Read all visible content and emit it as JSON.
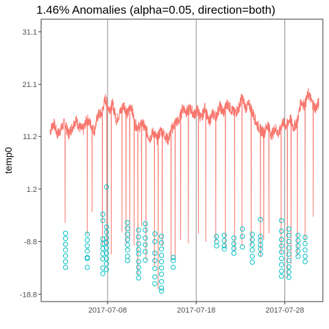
{
  "chart_data": {
    "type": "line",
    "title": "1.46% Anomalies (alpha=0.05, direction=both)",
    "xlabel": "",
    "ylabel": "temp0",
    "y_ticks": [
      "31.1",
      "21.1",
      "11.2",
      "1.2",
      "-8.8",
      "-18.8"
    ],
    "y_tick_values": [
      31.1,
      21.1,
      11.2,
      1.2,
      -8.8,
      -18.8
    ],
    "x_ticks": [
      "2017-07-08",
      "2017-07-18",
      "2017-07-28"
    ],
    "x_tick_values": [
      "2017-07-08",
      "2017-07-18",
      "2017-07-28"
    ],
    "x_range": [
      "2017-06-30T12:00",
      "2017-08-01T07:00"
    ],
    "ylim": [
      -20.2,
      33.5
    ],
    "grid": false,
    "series": [
      {
        "color": "#F8766D",
        "values": [
          [
            "2017-07-01T12:00",
            12.2
          ],
          [
            "2017-07-01T22:00",
            13.8
          ],
          [
            "2017-07-02T08:00",
            11.6
          ],
          [
            "2017-07-02T18:00",
            12.6
          ],
          [
            "2017-07-03T04:00",
            13.9
          ],
          [
            "2017-07-03T14:00",
            11.6
          ],
          [
            "2017-07-04T00:00",
            12.9
          ],
          [
            "2017-07-04T10:00",
            14.4
          ],
          [
            "2017-07-04T20:00",
            12.9
          ],
          [
            "2017-07-05T06:00",
            12.4
          ],
          [
            "2017-07-05T16:00",
            14.5
          ],
          [
            "2017-07-06T02:00",
            13.5
          ],
          [
            "2017-07-06T12:00",
            12.2
          ],
          [
            "2017-07-06T22:00",
            15.3
          ],
          [
            "2017-07-07T08:00",
            15.5
          ],
          [
            "2017-07-07T18:00",
            18.4
          ],
          [
            "2017-07-08T04:00",
            16.4
          ],
          [
            "2017-07-08T14:00",
            17.3
          ],
          [
            "2017-07-09T00:00",
            14.3
          ],
          [
            "2017-07-09T10:00",
            15.8
          ],
          [
            "2017-07-09T20:00",
            17.2
          ],
          [
            "2017-07-10T06:00",
            15.5
          ],
          [
            "2017-07-10T16:00",
            17.1
          ],
          [
            "2017-07-11T02:00",
            13.5
          ],
          [
            "2017-07-11T12:00",
            12.9
          ],
          [
            "2017-07-11T22:00",
            13.7
          ],
          [
            "2017-07-12T08:00",
            12.5
          ],
          [
            "2017-07-12T18:00",
            10.8
          ],
          [
            "2017-07-13T04:00",
            12.1
          ],
          [
            "2017-07-13T14:00",
            10.6
          ],
          [
            "2017-07-14T00:00",
            12.4
          ],
          [
            "2017-07-14T10:00",
            11.5
          ],
          [
            "2017-07-14T20:00",
            10.5
          ],
          [
            "2017-07-15T06:00",
            12.6
          ],
          [
            "2017-07-15T16:00",
            13.9
          ],
          [
            "2017-07-16T02:00",
            14.2
          ],
          [
            "2017-07-16T12:00",
            16.8
          ],
          [
            "2017-07-16T22:00",
            15.8
          ],
          [
            "2017-07-17T08:00",
            16.5
          ],
          [
            "2017-07-17T18:00",
            15.4
          ],
          [
            "2017-07-18T04:00",
            16.2
          ],
          [
            "2017-07-18T14:00",
            14.5
          ],
          [
            "2017-07-19T00:00",
            16.8
          ],
          [
            "2017-07-19T10:00",
            13.8
          ],
          [
            "2017-07-19T20:00",
            15.5
          ],
          [
            "2017-07-20T06:00",
            15.0
          ],
          [
            "2017-07-20T16:00",
            16.9
          ],
          [
            "2017-07-21T02:00",
            15.7
          ],
          [
            "2017-07-21T12:00",
            17.5
          ],
          [
            "2017-07-21T22:00",
            16.4
          ],
          [
            "2017-07-22T08:00",
            15.6
          ],
          [
            "2017-07-22T18:00",
            16.4
          ],
          [
            "2017-07-23T04:00",
            18.6
          ],
          [
            "2017-07-23T14:00",
            16.7
          ],
          [
            "2017-07-24T00:00",
            17.2
          ],
          [
            "2017-07-24T10:00",
            15.5
          ],
          [
            "2017-07-24T20:00",
            13.6
          ],
          [
            "2017-07-25T06:00",
            12.5
          ],
          [
            "2017-07-25T16:00",
            11.9
          ],
          [
            "2017-07-26T02:00",
            13.5
          ],
          [
            "2017-07-26T12:00",
            11.4
          ],
          [
            "2017-07-26T22:00",
            12.8
          ],
          [
            "2017-07-27T08:00",
            11.6
          ],
          [
            "2017-07-27T18:00",
            13.9
          ],
          [
            "2017-07-28T04:00",
            13.2
          ],
          [
            "2017-07-28T14:00",
            14.6
          ],
          [
            "2017-07-29T00:00",
            12.9
          ],
          [
            "2017-07-29T10:00",
            14.1
          ],
          [
            "2017-07-29T20:00",
            17.9
          ],
          [
            "2017-07-30T06:00",
            17.1
          ],
          [
            "2017-07-30T16:00",
            19.4
          ],
          [
            "2017-07-31T02:00",
            17.6
          ],
          [
            "2017-07-31T12:00",
            16.5
          ],
          [
            "2017-07-31T20:00",
            17.6
          ]
        ],
        "dips": [
          [
            "2017-07-03T05:00",
            -5.2
          ],
          [
            "2017-07-05T17:00",
            -7.4
          ],
          [
            "2017-07-06T06:00",
            -3.1
          ],
          [
            "2017-07-07T10:00",
            -9.4
          ],
          [
            "2017-07-07T22:00",
            -9.6
          ],
          [
            "2017-07-08T10:00",
            -11.2
          ],
          [
            "2017-07-09T15:00",
            -7.0
          ],
          [
            "2017-07-10T02:00",
            -9.2
          ],
          [
            "2017-07-10T12:00",
            -8.4
          ],
          [
            "2017-07-11T00:00",
            -9.5
          ],
          [
            "2017-07-11T10:00",
            -15.0
          ],
          [
            "2017-07-11T20:00",
            -5.8
          ],
          [
            "2017-07-12T08:00",
            -12.2
          ],
          [
            "2017-07-13T07:00",
            -13.5
          ],
          [
            "2017-07-13T17:00",
            -17.8
          ],
          [
            "2017-07-14T04:00",
            -9.7
          ],
          [
            "2017-07-15T04:00",
            -12.3
          ],
          [
            "2017-07-15T15:00",
            -12.3
          ],
          [
            "2017-07-16T06:00",
            -8.4
          ],
          [
            "2017-07-17T03:00",
            -9.1
          ],
          [
            "2017-07-18T06:00",
            -7.2
          ],
          [
            "2017-07-19T02:00",
            -8.8
          ],
          [
            "2017-07-20T05:00",
            -8.8
          ],
          [
            "2017-07-21T07:00",
            -10.0
          ],
          [
            "2017-07-22T08:00",
            -10.4
          ],
          [
            "2017-07-23T04:00",
            -9.6
          ],
          [
            "2017-07-24T05:00",
            -9.4
          ],
          [
            "2017-07-25T06:00",
            -11.6
          ],
          [
            "2017-07-25T15:00",
            -8.4
          ],
          [
            "2017-07-26T05:00",
            -7.2
          ],
          [
            "2017-07-27T14:00",
            -11.0
          ],
          [
            "2017-07-28T07:00",
            -15.6
          ],
          [
            "2017-07-28T17:00",
            -13.0
          ],
          [
            "2017-07-29T10:00",
            -11.5
          ],
          [
            "2017-07-30T07:00",
            -8.8
          ],
          [
            "2017-07-31T05:00",
            -4.0
          ]
        ]
      },
      {
        "color": "#00BFC4",
        "marker": "open-circle",
        "clusters": [
          {
            "x": "2017-07-03T06:00",
            "y": [
              -7.2,
              -8.2,
              -9.3,
              -10.4,
              -11.5,
              -12.6,
              -13.7
            ]
          },
          {
            "x": "2017-07-05T17:00",
            "y": [
              -7.4,
              -8.5,
              -9.6,
              -10.6,
              -11.8,
              -12.0,
              -13.7
            ]
          },
          {
            "x": "2017-07-07T11:00",
            "y": [
              -3.6,
              -4.8,
              -8.3,
              -9.2,
              -10.1,
              -11.1,
              -12.1,
              -13.8,
              -14.9
            ]
          },
          {
            "x": "2017-07-07T21:00",
            "y": [
              1.6,
              -6.0,
              -7.0,
              -8.1,
              -9.0,
              -10.0,
              -11.0,
              -12.0,
              -13.0,
              -14.1
            ]
          },
          {
            "x": "2017-07-10T06:00",
            "y": [
              -5.2,
              -6.3,
              -7.4,
              -8.4,
              -9.4,
              -10.4,
              -11.6,
              -12.4
            ]
          },
          {
            "x": "2017-07-11T12:00",
            "y": [
              -6.6,
              -7.9,
              -9.2,
              -10.3,
              -11.1,
              -12.6,
              -13.7,
              -14.7,
              -15.7
            ]
          },
          {
            "x": "2017-07-12T06:00",
            "y": [
              -5.4,
              -6.6,
              -8.1,
              -9.4,
              -10.7,
              -12.3
            ]
          },
          {
            "x": "2017-07-13T08:00",
            "y": [
              -7.3,
              -8.8,
              -11.0,
              -12.4,
              -13.9,
              -15.5,
              -16.8
            ]
          },
          {
            "x": "2017-07-14T02:00",
            "y": [
              -7.8,
              -9.0,
              -10.2,
              -11.4,
              -12.6,
              -13.8,
              -15.0,
              -16.4,
              -17.6,
              -18.2
            ]
          },
          {
            "x": "2017-07-15T10:00",
            "y": [
              -11.8,
              -12.4,
              -13.7
            ]
          },
          {
            "x": "2017-07-20T07:00",
            "y": [
              -7.8,
              -8.8,
              -9.6
            ]
          },
          {
            "x": "2017-07-21T04:00",
            "y": [
              -7.6,
              -8.6,
              -9.6,
              -10.2
            ]
          },
          {
            "x": "2017-07-22T06:00",
            "y": [
              -8.1,
              -9.2,
              -10.1,
              -11.0
            ]
          },
          {
            "x": "2017-07-23T05:00",
            "y": [
              -6.4,
              -7.8,
              -9.8
            ]
          },
          {
            "x": "2017-07-24T08:00",
            "y": [
              -7.4,
              -8.4,
              -9.4,
              -10.4,
              -11.6,
              -12.7
            ]
          },
          {
            "x": "2017-07-25T06:00",
            "y": [
              -4.6,
              -7.8,
              -8.6,
              -9.4,
              -10.2,
              -11.2
            ]
          },
          {
            "x": "2017-07-27T15:00",
            "y": [
              -4.8,
              -6.8,
              -8.4,
              -9.6,
              -10.8,
              -12.0,
              -13.2,
              -14.4,
              -15.4
            ]
          },
          {
            "x": "2017-07-28T11:00",
            "y": [
              -6.4,
              -7.6,
              -8.8,
              -10.0,
              -11.2,
              -12.4,
              -13.6,
              -14.6,
              -15.6
            ]
          },
          {
            "x": "2017-07-29T12:00",
            "y": [
              -7.6,
              -8.6,
              -9.6,
              -10.6,
              -11.6
            ]
          },
          {
            "x": "2017-07-30T07:00",
            "y": [
              -8.0,
              -9.2,
              -10.4,
              -11.6,
              -12.6
            ]
          }
        ]
      }
    ]
  }
}
